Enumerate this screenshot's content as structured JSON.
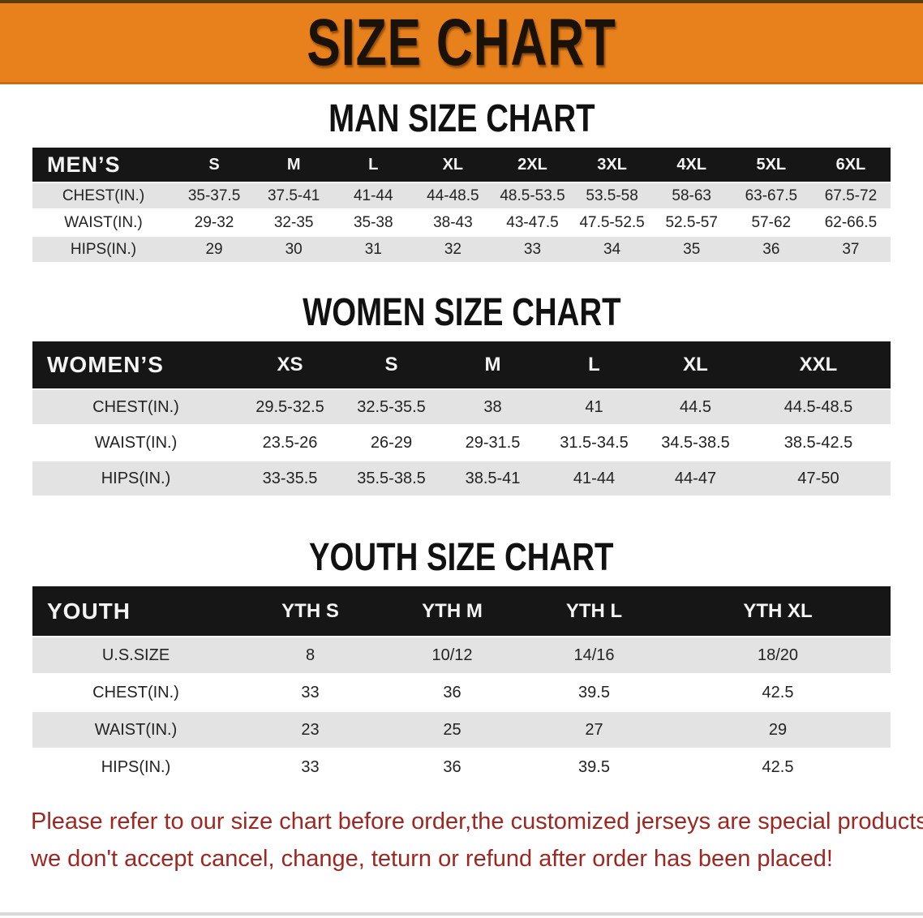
{
  "banner": {
    "title": "SIZE CHART"
  },
  "colors": {
    "banner_orange": "#e8811c",
    "header_black": "#161616",
    "row_gray": "#e3e3e3",
    "disclaimer_red": "#9e2722"
  },
  "tables": [
    {
      "id": "mens",
      "title": "MAN SIZE CHART",
      "header": [
        "MEN’S",
        "S",
        "M",
        "L",
        "XL",
        "2XL",
        "3XL",
        "4XL",
        "5XL",
        "6XL"
      ],
      "rows": [
        [
          "CHEST(IN.)",
          "35-37.5",
          "37.5-41",
          "41-44",
          "44-48.5",
          "48.5-53.5",
          "53.5-58",
          "58-63",
          "63-67.5",
          "67.5-72"
        ],
        [
          "WAIST(IN.)",
          "29-32",
          "32-35",
          "35-38",
          "38-43",
          "43-47.5",
          "47.5-52.5",
          "52.5-57",
          "57-62",
          "62-66.5"
        ],
        [
          "HIPS(IN.)",
          "29",
          "30",
          "31",
          "32",
          "33",
          "34",
          "35",
          "36",
          "37"
        ]
      ]
    },
    {
      "id": "womens",
      "title": "WOMEN SIZE CHART",
      "header": [
        "WOMEN’S",
        "XS",
        "S",
        "M",
        "L",
        "XL",
        "XXL"
      ],
      "rows": [
        [
          "CHEST(IN.)",
          "29.5-32.5",
          "32.5-35.5",
          "38",
          "41",
          "44.5",
          "44.5-48.5"
        ],
        [
          "WAIST(IN.)",
          "23.5-26",
          "26-29",
          "29-31.5",
          "31.5-34.5",
          "34.5-38.5",
          "38.5-42.5"
        ],
        [
          "HIPS(IN.)",
          "33-35.5",
          "35.5-38.5",
          "38.5-41",
          "41-44",
          "44-47",
          "47-50"
        ]
      ]
    },
    {
      "id": "youth",
      "title": "YOUTH SIZE CHART",
      "header": [
        "YOUTH",
        "YTH S",
        "YTH M",
        "YTH L",
        "YTH XL"
      ],
      "rows": [
        [
          "U.S.SIZE",
          "8",
          "10/12",
          "14/16",
          "18/20"
        ],
        [
          "CHEST(IN.)",
          "33",
          "36",
          "39.5",
          "42.5"
        ],
        [
          "WAIST(IN.)",
          "23",
          "25",
          "27",
          "29"
        ],
        [
          "HIPS(IN.)",
          "33",
          "36",
          "39.5",
          "42.5"
        ]
      ]
    }
  ],
  "disclaimer": {
    "line1": "Please refer to our size chart before order,the customized jerseys are special products,",
    "line2": "we don't accept cancel, change, teturn or refund after order has been placed!"
  }
}
